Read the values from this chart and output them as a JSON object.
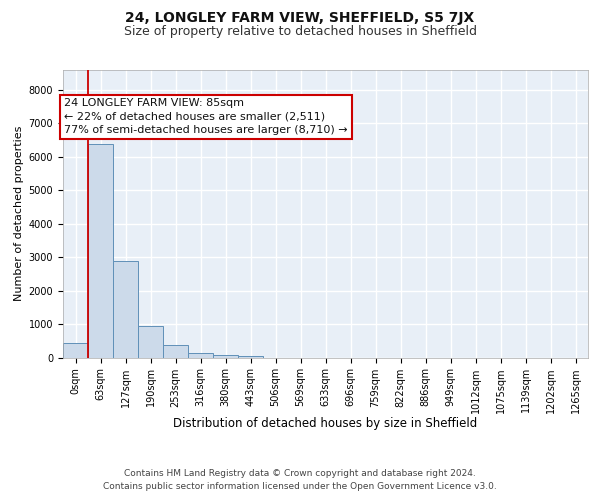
{
  "title1": "24, LONGLEY FARM VIEW, SHEFFIELD, S5 7JX",
  "title2": "Size of property relative to detached houses in Sheffield",
  "xlabel": "Distribution of detached houses by size in Sheffield",
  "ylabel": "Number of detached properties",
  "bar_color": "#ccdaea",
  "bar_edge_color": "#6090b8",
  "categories": [
    "0sqm",
    "63sqm",
    "127sqm",
    "190sqm",
    "253sqm",
    "316sqm",
    "380sqm",
    "443sqm",
    "506sqm",
    "569sqm",
    "633sqm",
    "696sqm",
    "759sqm",
    "822sqm",
    "886sqm",
    "949sqm",
    "1012sqm",
    "1075sqm",
    "1139sqm",
    "1202sqm",
    "1265sqm"
  ],
  "values": [
    430,
    6400,
    2900,
    950,
    380,
    130,
    80,
    50,
    0,
    0,
    0,
    0,
    0,
    0,
    0,
    0,
    0,
    0,
    0,
    0,
    0
  ],
  "ylim": [
    0,
    8600
  ],
  "yticks": [
    0,
    1000,
    2000,
    3000,
    4000,
    5000,
    6000,
    7000,
    8000
  ],
  "property_line_x": 1.0,
  "annotation_lines": [
    "24 LONGLEY FARM VIEW: 85sqm",
    "← 22% of detached houses are smaller (2,511)",
    "77% of semi-detached houses are larger (8,710) →"
  ],
  "footer1": "Contains HM Land Registry data © Crown copyright and database right 2024.",
  "footer2": "Contains public sector information licensed under the Open Government Licence v3.0.",
  "background_color": "#e8eff7",
  "grid_color": "#ffffff",
  "title1_fontsize": 10,
  "title2_fontsize": 9,
  "xlabel_fontsize": 8.5,
  "ylabel_fontsize": 8,
  "tick_fontsize": 7,
  "annotation_fontsize": 8,
  "footer_fontsize": 6.5
}
